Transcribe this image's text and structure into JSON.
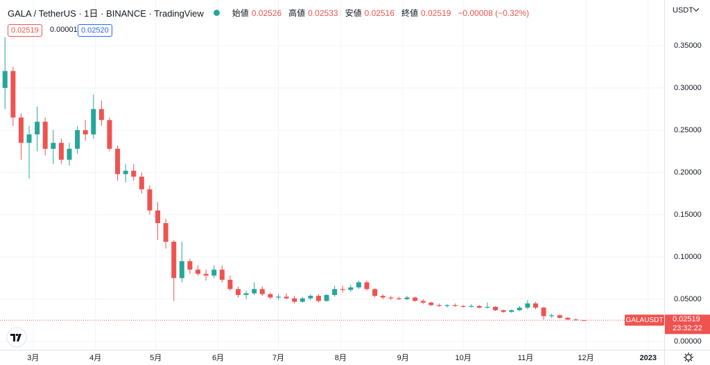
{
  "chart_data": {
    "type": "candlestick",
    "title": "GALA / TetherUS · 1日 · BINANCE · TradingView",
    "legend": [
      {
        "label": "始値",
        "value": "0.02526"
      },
      {
        "label": "高値",
        "value": "0.02533"
      },
      {
        "label": "安値",
        "value": "0.02516"
      },
      {
        "label": "終値",
        "value": "0.02519"
      }
    ],
    "change": "−0.00008 (−0.32%)",
    "boxes": {
      "bid": "0.02519",
      "spread": "0.00001",
      "ask": "0.02520"
    },
    "currency": "USDT",
    "price_tag": {
      "symbol": "GALAUSDT",
      "price": "0.02519",
      "countdown": "23:32:22"
    },
    "up_color": "#26a69a",
    "down_color": "#ef5350",
    "grid": true,
    "x": [
      0,
      4,
      8,
      12,
      16,
      20,
      24,
      28,
      32,
      36,
      40,
      44,
      48,
      52,
      56,
      60,
      64,
      68,
      72,
      76,
      80,
      84,
      88,
      92,
      96,
      100,
      104,
      108,
      112,
      116,
      120,
      124,
      128,
      132,
      136,
      140,
      144,
      148,
      152,
      156,
      160,
      164,
      168,
      172,
      176,
      180,
      184,
      188,
      192,
      196,
      200,
      204,
      208,
      212,
      216,
      220,
      224,
      228,
      232,
      236,
      240,
      244,
      248,
      252,
      256,
      260,
      264,
      268,
      272,
      276,
      280,
      284,
      288
    ],
    "ohlc": [
      [
        0.3,
        0.36,
        0.275,
        0.32
      ],
      [
        0.32,
        0.325,
        0.255,
        0.265
      ],
      [
        0.265,
        0.27,
        0.215,
        0.235
      ],
      [
        0.235,
        0.255,
        0.193,
        0.245
      ],
      [
        0.245,
        0.278,
        0.225,
        0.26
      ],
      [
        0.26,
        0.265,
        0.22,
        0.228
      ],
      [
        0.228,
        0.25,
        0.21,
        0.235
      ],
      [
        0.235,
        0.24,
        0.21,
        0.215
      ],
      [
        0.215,
        0.235,
        0.208,
        0.228
      ],
      [
        0.228,
        0.255,
        0.222,
        0.25
      ],
      [
        0.25,
        0.262,
        0.238,
        0.245
      ],
      [
        0.245,
        0.292,
        0.24,
        0.275
      ],
      [
        0.275,
        0.285,
        0.255,
        0.262
      ],
      [
        0.262,
        0.265,
        0.225,
        0.228
      ],
      [
        0.228,
        0.232,
        0.19,
        0.198
      ],
      [
        0.198,
        0.21,
        0.188,
        0.202
      ],
      [
        0.202,
        0.21,
        0.19,
        0.195
      ],
      [
        0.195,
        0.2,
        0.175,
        0.18
      ],
      [
        0.18,
        0.185,
        0.15,
        0.155
      ],
      [
        0.155,
        0.165,
        0.12,
        0.14
      ],
      [
        0.14,
        0.145,
        0.11,
        0.118
      ],
      [
        0.118,
        0.12,
        0.048,
        0.075
      ],
      [
        0.075,
        0.118,
        0.07,
        0.095
      ],
      [
        0.095,
        0.098,
        0.08,
        0.085
      ],
      [
        0.085,
        0.09,
        0.078,
        0.08
      ],
      [
        0.08,
        0.085,
        0.072,
        0.078
      ],
      [
        0.078,
        0.09,
        0.075,
        0.085
      ],
      [
        0.085,
        0.09,
        0.07,
        0.073
      ],
      [
        0.073,
        0.078,
        0.06,
        0.062
      ],
      [
        0.062,
        0.065,
        0.052,
        0.055
      ],
      [
        0.055,
        0.06,
        0.05,
        0.057
      ],
      [
        0.057,
        0.07,
        0.055,
        0.062
      ],
      [
        0.062,
        0.065,
        0.054,
        0.056
      ],
      [
        0.056,
        0.058,
        0.05,
        0.052
      ],
      [
        0.052,
        0.056,
        0.049,
        0.053
      ],
      [
        0.053,
        0.057,
        0.05,
        0.051
      ],
      [
        0.051,
        0.054,
        0.045,
        0.047
      ],
      [
        0.047,
        0.053,
        0.046,
        0.051
      ],
      [
        0.051,
        0.056,
        0.049,
        0.054
      ],
      [
        0.054,
        0.056,
        0.046,
        0.048
      ],
      [
        0.048,
        0.056,
        0.047,
        0.055
      ],
      [
        0.055,
        0.066,
        0.053,
        0.062
      ],
      [
        0.062,
        0.066,
        0.058,
        0.061
      ],
      [
        0.061,
        0.067,
        0.059,
        0.064
      ],
      [
        0.064,
        0.072,
        0.062,
        0.07
      ],
      [
        0.07,
        0.072,
        0.06,
        0.062
      ],
      [
        0.062,
        0.063,
        0.052,
        0.054
      ],
      [
        0.054,
        0.056,
        0.05,
        0.052
      ],
      [
        0.052,
        0.054,
        0.049,
        0.051
      ],
      [
        0.051,
        0.053,
        0.049,
        0.05
      ],
      [
        0.05,
        0.054,
        0.049,
        0.052
      ],
      [
        0.052,
        0.053,
        0.047,
        0.048
      ],
      [
        0.048,
        0.05,
        0.044,
        0.046
      ],
      [
        0.046,
        0.047,
        0.042,
        0.043
      ],
      [
        0.043,
        0.045,
        0.041,
        0.042
      ],
      [
        0.042,
        0.044,
        0.04,
        0.043
      ],
      [
        0.043,
        0.045,
        0.041,
        0.042
      ],
      [
        0.042,
        0.043,
        0.04,
        0.041
      ],
      [
        0.041,
        0.044,
        0.04,
        0.042
      ],
      [
        0.042,
        0.043,
        0.039,
        0.04
      ],
      [
        0.04,
        0.046,
        0.039,
        0.041
      ],
      [
        0.041,
        0.042,
        0.036,
        0.037
      ],
      [
        0.037,
        0.038,
        0.034,
        0.035
      ],
      [
        0.035,
        0.038,
        0.034,
        0.037
      ],
      [
        0.037,
        0.042,
        0.036,
        0.04
      ],
      [
        0.04,
        0.049,
        0.038,
        0.045
      ],
      [
        0.045,
        0.047,
        0.038,
        0.04
      ],
      [
        0.04,
        0.041,
        0.026,
        0.03
      ],
      [
        0.03,
        0.033,
        0.028,
        0.031
      ],
      [
        0.031,
        0.032,
        0.027,
        0.028
      ],
      [
        0.028,
        0.029,
        0.025,
        0.026
      ],
      [
        0.026,
        0.027,
        0.0245,
        0.0255
      ],
      [
        0.02526,
        0.02533,
        0.02516,
        0.02519
      ]
    ],
    "xlim": [
      -2.5,
      328
    ],
    "xticks": [
      {
        "value": 14,
        "label": "3月"
      },
      {
        "value": 45,
        "label": "4月"
      },
      {
        "value": 75,
        "label": "5月"
      },
      {
        "value": 106,
        "label": "6月"
      },
      {
        "value": 136,
        "label": "7月"
      },
      {
        "value": 167,
        "label": "8月"
      },
      {
        "value": 198,
        "label": "9月"
      },
      {
        "value": 228,
        "label": "10月"
      },
      {
        "value": 259,
        "label": "11月"
      },
      {
        "value": 289,
        "label": "12月"
      },
      {
        "value": 320,
        "label": "2023"
      }
    ],
    "ylim": [
      -0.0098,
      0.404
    ],
    "yticks": [
      {
        "value": 0,
        "label": "0.00000"
      },
      {
        "value": 0.05,
        "label": "0.05000"
      },
      {
        "value": 0.1,
        "label": "0.10000"
      },
      {
        "value": 0.15,
        "label": "0.15000"
      },
      {
        "value": 0.2,
        "label": "0.20000"
      },
      {
        "value": 0.25,
        "label": "0.25000"
      },
      {
        "value": 0.3,
        "label": "0.30000"
      },
      {
        "value": 0.35,
        "label": "0.35000"
      }
    ]
  }
}
